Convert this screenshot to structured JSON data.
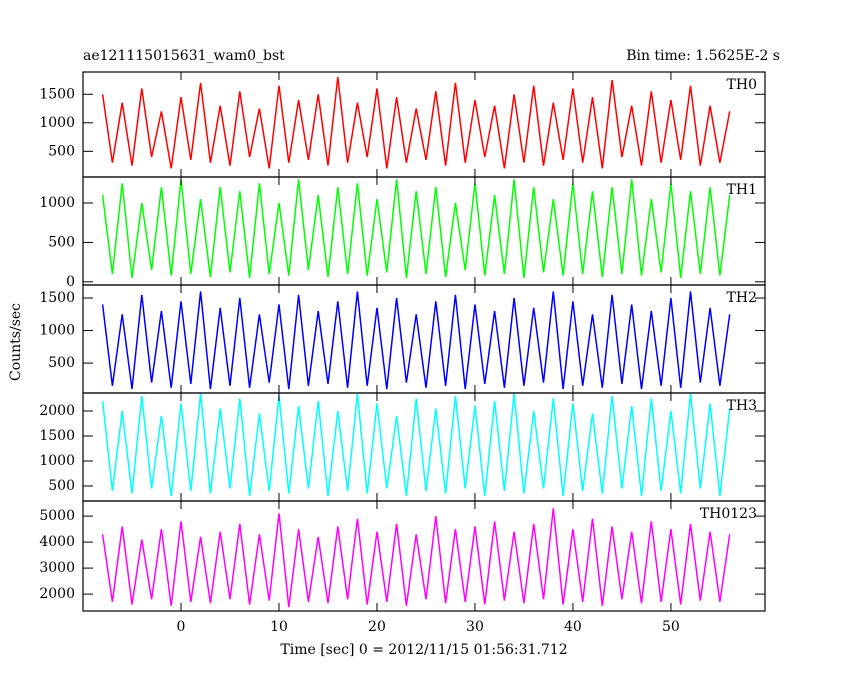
{
  "chart_data": {
    "type": "line",
    "title": "ae121115015631_wam0_bst",
    "subtitle": "Bin time: 1.5625E-2 s",
    "xlabel": "Time [sec] 0 = 2012/11/15 01:56:31.712",
    "ylabel": "Counts/sec",
    "xlim": [
      -10,
      59.6
    ],
    "xticks": [
      0,
      10,
      20,
      30,
      40,
      50
    ],
    "x": [
      -8,
      -7,
      -6,
      -5,
      -4,
      -3,
      -2,
      -1,
      0,
      1,
      2,
      3,
      4,
      5,
      6,
      7,
      8,
      9,
      10,
      11,
      12,
      13,
      14,
      15,
      16,
      17,
      18,
      19,
      20,
      21,
      22,
      23,
      24,
      25,
      26,
      27,
      28,
      29,
      30,
      31,
      32,
      33,
      34,
      35,
      36,
      37,
      38,
      39,
      40,
      41,
      42,
      43,
      44,
      45,
      46,
      47,
      48,
      49,
      50,
      51,
      52,
      53,
      54,
      55,
      56
    ],
    "panels": [
      {
        "name": "TH0",
        "color": "#ff0000",
        "ylim": [
          50,
          1890
        ],
        "yticks": [
          500,
          1000,
          1500
        ],
        "values": [
          1500,
          300,
          1350,
          250,
          1600,
          400,
          1200,
          200,
          1450,
          350,
          1700,
          300,
          1300,
          250,
          1550,
          400,
          1250,
          200,
          1650,
          300,
          1400,
          350,
          1500,
          250,
          1800,
          300,
          1350,
          400,
          1600,
          200,
          1450,
          300,
          1250,
          350,
          1550,
          250,
          1700,
          300,
          1400,
          400,
          1300,
          200,
          1500,
          300,
          1650,
          250,
          1350,
          350,
          1600,
          300,
          1450,
          200,
          1750,
          400,
          1300,
          250,
          1550,
          300,
          1400,
          350,
          1650,
          250,
          1300,
          300,
          1200
        ]
      },
      {
        "name": "TH1",
        "color": "#00ff00",
        "ylim": [
          -40,
          1330
        ],
        "yticks": [
          0,
          500,
          1000
        ],
        "values": [
          1100,
          100,
          1250,
          50,
          1000,
          150,
          1200,
          80,
          1300,
          100,
          1050,
          60,
          1200,
          120,
          1150,
          50,
          1250,
          100,
          1000,
          80,
          1300,
          150,
          1100,
          60,
          1200,
          100,
          1250,
          80,
          1050,
          120,
          1300,
          50,
          1150,
          100,
          1200,
          60,
          1000,
          150,
          1250,
          80,
          1100,
          100,
          1300,
          50,
          1200,
          120,
          1050,
          80,
          1250,
          100,
          1150,
          60,
          1200,
          100,
          1300,
          80,
          1050,
          120,
          1250,
          50,
          1150,
          100,
          1200,
          80,
          1100
        ]
      },
      {
        "name": "TH2",
        "color": "#0000ff",
        "ylim": [
          40,
          1700
        ],
        "yticks": [
          500,
          1000,
          1500
        ],
        "values": [
          1400,
          150,
          1250,
          100,
          1550,
          200,
          1300,
          120,
          1450,
          180,
          1600,
          100,
          1350,
          150,
          1500,
          120,
          1250,
          200,
          1400,
          100,
          1550,
          150,
          1300,
          180,
          1450,
          120,
          1600,
          150,
          1350,
          100,
          1500,
          200,
          1250,
          120,
          1450,
          150,
          1550,
          100,
          1400,
          180,
          1300,
          120,
          1500,
          150,
          1350,
          200,
          1600,
          100,
          1450,
          150,
          1250,
          120,
          1550,
          180,
          1400,
          100,
          1300,
          150,
          1500,
          120,
          1600,
          200,
          1350,
          150,
          1250
        ]
      },
      {
        "name": "TH3",
        "color": "#00ffff",
        "ylim": [
          200,
          2360
        ],
        "yticks": [
          500,
          1000,
          1500,
          2000
        ],
        "values": [
          2200,
          400,
          2000,
          350,
          2300,
          450,
          1900,
          300,
          2150,
          400,
          2350,
          350,
          2050,
          450,
          2250,
          300,
          1950,
          400,
          2300,
          350,
          2100,
          450,
          2200,
          300,
          2000,
          400,
          2350,
          350,
          2150,
          450,
          1900,
          300,
          2250,
          400,
          2050,
          350,
          2300,
          450,
          2100,
          300,
          2200,
          400,
          2350,
          350,
          2000,
          450,
          2250,
          300,
          2150,
          400,
          1950,
          350,
          2300,
          450,
          2100,
          300,
          2250,
          400,
          2000,
          350,
          2350,
          450,
          2150,
          300,
          2050
        ]
      },
      {
        "name": "TH0123",
        "color": "#ff00ff",
        "ylim": [
          1350,
          5580
        ],
        "yticks": [
          2000,
          3000,
          4000,
          5000
        ],
        "values": [
          4300,
          1700,
          4600,
          1600,
          4100,
          1800,
          4500,
          1550,
          4800,
          1700,
          4200,
          1650,
          4400,
          1800,
          4700,
          1600,
          4300,
          1750,
          5100,
          1500,
          4500,
          1700,
          4200,
          1650,
          4600,
          1800,
          4900,
          1600,
          4400,
          1700,
          4700,
          1550,
          4300,
          1800,
          5000,
          1650,
          4500,
          1700,
          4600,
          1600,
          4800,
          1750,
          4400,
          1650,
          4700,
          1800,
          5300,
          1600,
          4500,
          1700,
          4900,
          1550,
          4600,
          1800,
          4400,
          1650,
          4800,
          1700,
          4500,
          1600,
          4700,
          1750,
          4400,
          1700,
          4300
        ]
      }
    ]
  }
}
